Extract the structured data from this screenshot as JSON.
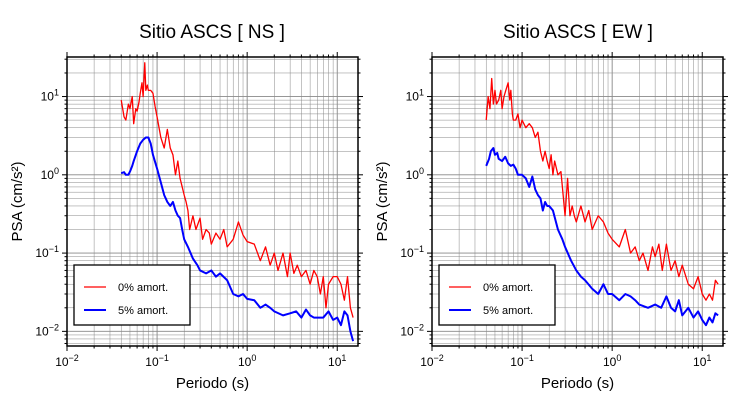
{
  "chart_data": [
    {
      "type": "line",
      "title": "Sitio ASCS [ NS ]",
      "xlabel": "Periodo (s)",
      "ylabel": "PSA (cm/s²)",
      "xscale": "log",
      "yscale": "log",
      "xlim": [
        0.01,
        17
      ],
      "ylim": [
        0.0065,
        32
      ],
      "grid": true,
      "legend_position": "bottom-left",
      "x_ticks": [
        {
          "value": 0.01,
          "base": "10",
          "exp": "−2"
        },
        {
          "value": 0.1,
          "base": "10",
          "exp": "−1"
        },
        {
          "value": 1,
          "base": "10",
          "exp": "0"
        },
        {
          "value": 10,
          "base": "10",
          "exp": "1"
        }
      ],
      "y_ticks": [
        {
          "value": 0.01,
          "base": "10",
          "exp": "−2"
        },
        {
          "value": 0.1,
          "base": "10",
          "exp": "−1"
        },
        {
          "value": 1,
          "base": "10",
          "exp": "0"
        },
        {
          "value": 10,
          "base": "10",
          "exp": "1"
        }
      ],
      "series": [
        {
          "name": "0% amort.",
          "color": "#ff0000",
          "x": [
            0.04,
            0.043,
            0.045,
            0.048,
            0.05,
            0.053,
            0.055,
            0.058,
            0.06,
            0.063,
            0.065,
            0.068,
            0.07,
            0.073,
            0.075,
            0.078,
            0.08,
            0.085,
            0.09,
            0.095,
            0.1,
            0.11,
            0.12,
            0.13,
            0.14,
            0.15,
            0.16,
            0.17,
            0.18,
            0.19,
            0.2,
            0.21,
            0.22,
            0.23,
            0.25,
            0.27,
            0.3,
            0.32,
            0.35,
            0.38,
            0.4,
            0.45,
            0.5,
            0.55,
            0.6,
            0.7,
            0.8,
            0.9,
            1.0,
            1.2,
            1.4,
            1.6,
            1.8,
            2.0,
            2.2,
            2.5,
            2.8,
            3.0,
            3.3,
            3.6,
            4.0,
            4.5,
            5.0,
            5.5,
            6.0,
            6.5,
            7.0,
            7.5,
            8.0,
            9.0,
            10.0,
            11.0,
            12.0,
            13.0,
            14.0,
            15.0
          ],
          "y": [
            9.0,
            5.5,
            5.0,
            8.0,
            7.0,
            10.0,
            4.5,
            7.0,
            6.5,
            8.5,
            11.0,
            15.0,
            10.0,
            27.0,
            12.0,
            14.0,
            12.0,
            12.0,
            11.0,
            7.5,
            5.5,
            3.0,
            2.2,
            3.8,
            2.2,
            1.8,
            1.0,
            1.5,
            0.9,
            0.7,
            0.55,
            0.45,
            0.35,
            0.2,
            0.3,
            0.2,
            0.28,
            0.15,
            0.2,
            0.18,
            0.13,
            0.18,
            0.15,
            0.2,
            0.12,
            0.15,
            0.25,
            0.17,
            0.14,
            0.13,
            0.08,
            0.12,
            0.07,
            0.1,
            0.06,
            0.1,
            0.05,
            0.1,
            0.055,
            0.07,
            0.05,
            0.06,
            0.04,
            0.06,
            0.05,
            0.03,
            0.05,
            0.02,
            0.04,
            0.05,
            0.05,
            0.04,
            0.025,
            0.05,
            0.02,
            0.015
          ]
        },
        {
          "name": "5% amort.",
          "color": "#0000ff",
          "x": [
            0.04,
            0.043,
            0.045,
            0.048,
            0.05,
            0.053,
            0.055,
            0.06,
            0.065,
            0.07,
            0.075,
            0.08,
            0.085,
            0.09,
            0.1,
            0.11,
            0.12,
            0.13,
            0.14,
            0.15,
            0.16,
            0.17,
            0.18,
            0.19,
            0.2,
            0.22,
            0.25,
            0.28,
            0.3,
            0.35,
            0.4,
            0.45,
            0.5,
            0.6,
            0.7,
            0.8,
            0.9,
            1.0,
            1.2,
            1.4,
            1.6,
            1.8,
            2.0,
            2.5,
            3.0,
            3.5,
            4.0,
            4.5,
            5.0,
            5.5,
            6.0,
            7.0,
            8.0,
            9.0,
            10.0,
            11.0,
            12.0,
            13.0,
            14.0,
            15.0
          ],
          "y": [
            1.05,
            1.08,
            1.0,
            1.0,
            1.1,
            1.3,
            1.5,
            2.0,
            2.5,
            2.8,
            3.0,
            3.0,
            2.5,
            1.8,
            1.2,
            0.8,
            0.55,
            0.45,
            0.4,
            0.45,
            0.35,
            0.3,
            0.28,
            0.2,
            0.15,
            0.12,
            0.085,
            0.07,
            0.06,
            0.055,
            0.06,
            0.05,
            0.055,
            0.045,
            0.03,
            0.028,
            0.03,
            0.026,
            0.025,
            0.02,
            0.022,
            0.02,
            0.018,
            0.016,
            0.017,
            0.018,
            0.015,
            0.019,
            0.016,
            0.015,
            0.015,
            0.015,
            0.018,
            0.014,
            0.015,
            0.012,
            0.018,
            0.016,
            0.01,
            0.0075
          ]
        }
      ]
    },
    {
      "type": "line",
      "title": "Sitio ASCS [ EW ]",
      "xlabel": "Periodo (s)",
      "ylabel": "PSA (cm/s²)",
      "xscale": "log",
      "yscale": "log",
      "xlim": [
        0.01,
        17
      ],
      "ylim": [
        0.0065,
        32
      ],
      "grid": true,
      "legend_position": "bottom-left",
      "x_ticks": [
        {
          "value": 0.01,
          "base": "10",
          "exp": "−2"
        },
        {
          "value": 0.1,
          "base": "10",
          "exp": "−1"
        },
        {
          "value": 1,
          "base": "10",
          "exp": "0"
        },
        {
          "value": 10,
          "base": "10",
          "exp": "1"
        }
      ],
      "y_ticks": [
        {
          "value": 0.01,
          "base": "10",
          "exp": "−2"
        },
        {
          "value": 0.1,
          "base": "10",
          "exp": "−1"
        },
        {
          "value": 1,
          "base": "10",
          "exp": "0"
        },
        {
          "value": 10,
          "base": "10",
          "exp": "1"
        }
      ],
      "series": [
        {
          "name": "0% amort.",
          "color": "#ff0000",
          "x": [
            0.04,
            0.042,
            0.044,
            0.046,
            0.048,
            0.05,
            0.052,
            0.055,
            0.058,
            0.06,
            0.063,
            0.066,
            0.07,
            0.073,
            0.075,
            0.078,
            0.08,
            0.085,
            0.09,
            0.095,
            0.1,
            0.11,
            0.12,
            0.13,
            0.14,
            0.15,
            0.16,
            0.17,
            0.18,
            0.19,
            0.2,
            0.21,
            0.22,
            0.23,
            0.25,
            0.27,
            0.3,
            0.32,
            0.34,
            0.36,
            0.38,
            0.4,
            0.45,
            0.5,
            0.55,
            0.6,
            0.7,
            0.8,
            0.9,
            1.0,
            1.2,
            1.4,
            1.6,
            1.8,
            2.0,
            2.2,
            2.5,
            2.8,
            3.0,
            3.3,
            3.6,
            4.0,
            4.5,
            5.0,
            5.5,
            6.0,
            7.0,
            8.0,
            9.0,
            10.0,
            11.0,
            12.0,
            13.0,
            14.0,
            15.0
          ],
          "y": [
            5.0,
            10.0,
            7.0,
            17.0,
            8.0,
            12.0,
            8.0,
            9.0,
            12.0,
            7.0,
            10.0,
            12.0,
            15.0,
            9.0,
            12.0,
            6.0,
            5.0,
            5.0,
            6.0,
            4.0,
            5.0,
            4.0,
            4.5,
            4.0,
            3.0,
            3.5,
            2.0,
            1.5,
            2.0,
            1.5,
            1.2,
            1.8,
            1.0,
            1.5,
            1.0,
            1.1,
            0.3,
            0.9,
            0.3,
            0.4,
            0.3,
            0.25,
            0.4,
            0.25,
            0.35,
            0.2,
            0.3,
            0.25,
            0.18,
            0.15,
            0.12,
            0.2,
            0.1,
            0.12,
            0.08,
            0.1,
            0.06,
            0.12,
            0.09,
            0.13,
            0.06,
            0.13,
            0.06,
            0.08,
            0.05,
            0.07,
            0.04,
            0.035,
            0.05,
            0.03,
            0.025,
            0.03,
            0.025,
            0.045,
            0.04
          ]
        },
        {
          "name": "5% amort.",
          "color": "#0000ff",
          "x": [
            0.04,
            0.043,
            0.045,
            0.048,
            0.05,
            0.053,
            0.055,
            0.06,
            0.065,
            0.07,
            0.075,
            0.08,
            0.085,
            0.09,
            0.1,
            0.11,
            0.12,
            0.13,
            0.14,
            0.15,
            0.16,
            0.17,
            0.18,
            0.19,
            0.2,
            0.22,
            0.25,
            0.28,
            0.3,
            0.35,
            0.4,
            0.45,
            0.5,
            0.6,
            0.7,
            0.8,
            0.9,
            1.0,
            1.2,
            1.4,
            1.6,
            1.8,
            2.0,
            2.5,
            3.0,
            3.5,
            4.0,
            4.5,
            5.0,
            5.5,
            6.0,
            7.0,
            8.0,
            9.0,
            10.0,
            11.0,
            12.0,
            13.0,
            14.0,
            15.0
          ],
          "y": [
            1.3,
            1.6,
            2.0,
            2.2,
            1.8,
            1.9,
            1.6,
            1.5,
            1.7,
            1.4,
            1.3,
            1.35,
            1.2,
            1.0,
            1.0,
            0.9,
            0.7,
            0.95,
            0.65,
            0.55,
            0.5,
            0.35,
            0.45,
            0.4,
            0.4,
            0.35,
            0.2,
            0.15,
            0.12,
            0.08,
            0.06,
            0.05,
            0.045,
            0.035,
            0.03,
            0.04,
            0.03,
            0.03,
            0.025,
            0.03,
            0.028,
            0.025,
            0.022,
            0.02,
            0.022,
            0.02,
            0.028,
            0.02,
            0.018,
            0.025,
            0.016,
            0.02,
            0.015,
            0.018,
            0.014,
            0.012,
            0.015,
            0.013,
            0.017,
            0.016
          ]
        }
      ]
    }
  ]
}
